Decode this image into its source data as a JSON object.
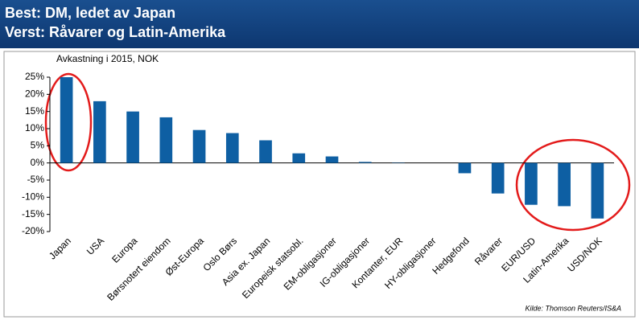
{
  "chart_data": {
    "type": "bar",
    "title": [
      "Best: DM, ledet av Japan",
      "Verst: Råvarer og Latin-Amerika"
    ],
    "subtitle": "Avkastning i 2015, NOK",
    "source": "Kilde: Thomson  Reuters/IS&A",
    "categories": [
      "Japan",
      "USA",
      "Europa",
      "Børsnotert eiendom",
      "Øst-Europa",
      "Oslo Børs",
      "Asia ex. Japan",
      "Europeisk statsobl.",
      "EM-obligasjoner",
      "IG-obligasjoner",
      "Kontanter, EUR",
      "HY-obligasjoner",
      "Hedgefond",
      "Råvarer",
      "EUR/USD",
      "Latin-Amerika",
      "USD/NOK"
    ],
    "values": [
      25,
      18,
      15,
      13.3,
      9.6,
      8.7,
      6.6,
      2.8,
      1.9,
      0.3,
      0.1,
      0,
      -3,
      -8.9,
      -12.2,
      -12.6,
      -16.2
    ],
    "color": "#0e5fa3",
    "ylim": [
      -20,
      25
    ],
    "yticks": [
      {
        "value": -20,
        "label": "-20%"
      },
      {
        "value": -15,
        "label": "-15%"
      },
      {
        "value": -10,
        "label": "-10%"
      },
      {
        "value": -5,
        "label": "-5%"
      },
      {
        "value": 0,
        "label": "0%"
      },
      {
        "value": 5,
        "label": "5%"
      },
      {
        "value": 10,
        "label": "10%"
      },
      {
        "value": 15,
        "label": "15%"
      },
      {
        "value": 20,
        "label": "20%"
      },
      {
        "value": 25,
        "label": "25%"
      }
    ],
    "grid": false
  }
}
